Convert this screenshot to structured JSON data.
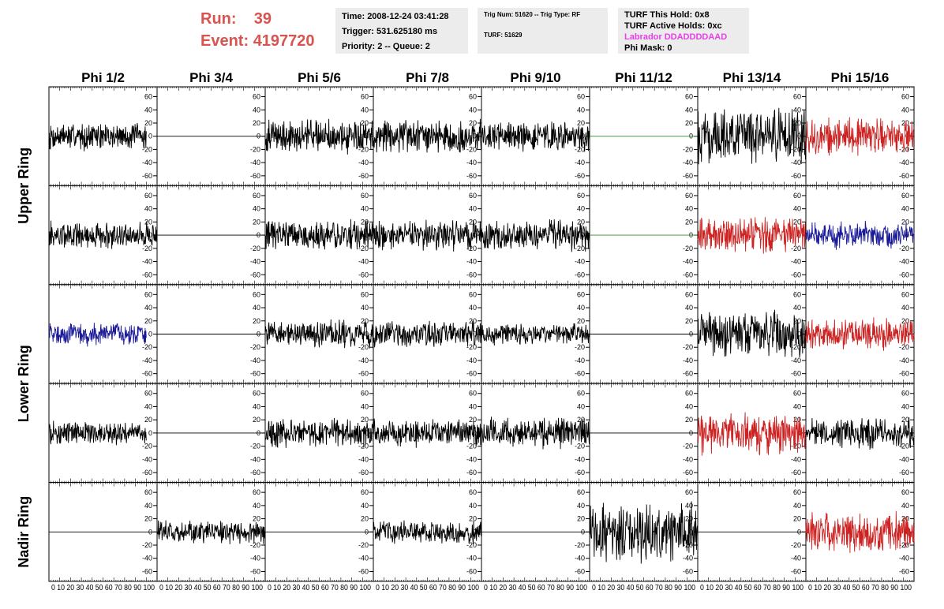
{
  "header": {
    "run_label": "Run:",
    "run_value": "39",
    "event_label": "Event:",
    "event_value": "4197720"
  },
  "info_box_1": {
    "time": "Time: 2008-12-24 03:41:28",
    "trigger": "Trigger: 531.625180 ms",
    "priority": "Priority: 2 -- Queue: 2"
  },
  "info_box_2": {
    "trig": "Trig Num: 51620 -- Trig Type: RF",
    "turf": "TURF: 51629"
  },
  "info_box_3": {
    "hold": "TURF This Hold: 0x8",
    "active": "TURF Active Holds: 0xc",
    "labrador": "Labrador DDADDDDAAD",
    "phimask": "Phi Mask: 0"
  },
  "colors": {
    "black": "#000000",
    "red": "#cc2222",
    "blue": "#1a1a99",
    "green": "#2e8b2e",
    "run_text": "#d9534f",
    "labrador": "#e83ee8"
  },
  "chart_data": {
    "type": "line",
    "columns": [
      "Phi 1/2",
      "Phi 3/4",
      "Phi 5/6",
      "Phi 7/8",
      "Phi 9/10",
      "Phi 11/12",
      "Phi 13/14",
      "Phi 15/16"
    ],
    "rows": [
      "Upper Ring",
      "Upper Ring",
      "Lower Ring",
      "Lower Ring",
      "Nadir Ring"
    ],
    "ring_labels": [
      "Upper Ring",
      "Lower Ring",
      "Nadir Ring"
    ],
    "xlim": [
      0,
      100
    ],
    "ylim": [
      -75,
      75
    ],
    "y_ticks": [
      -60,
      -40,
      -20,
      0,
      20,
      40,
      60
    ],
    "x_tick_text": "0 10 20 30 40 50 60 70 80 90 100",
    "traces": [
      [
        {
          "color": "black",
          "amp": 18,
          "x0": 0,
          "x1": 90
        },
        {
          "color": "black",
          "amp": 0,
          "x0": 0,
          "x1": 100
        },
        {
          "color": "black",
          "amp": 22,
          "x0": 0,
          "x1": 100
        },
        {
          "color": "black",
          "amp": 22,
          "x0": 0,
          "x1": 100
        },
        {
          "color": "black",
          "amp": 20,
          "x0": 0,
          "x1": 100
        },
        {
          "color": "green",
          "amp": 0,
          "x0": 0,
          "x1": 100
        },
        {
          "color": "black",
          "amp": 35,
          "x0": 0,
          "x1": 100
        },
        {
          "color": "red",
          "amp": 24,
          "x0": 0,
          "x1": 100
        }
      ],
      [
        {
          "color": "black",
          "amp": 18,
          "x0": 0,
          "x1": 100
        },
        {
          "color": "black",
          "amp": 0,
          "x0": 0,
          "x1": 100
        },
        {
          "color": "black",
          "amp": 20,
          "x0": 0,
          "x1": 100
        },
        {
          "color": "black",
          "amp": 20,
          "x0": 0,
          "x1": 100
        },
        {
          "color": "black",
          "amp": 20,
          "x0": 0,
          "x1": 100
        },
        {
          "color": "green",
          "amp": 0,
          "x0": 0,
          "x1": 100
        },
        {
          "color": "red",
          "amp": 24,
          "x0": 0,
          "x1": 100
        },
        {
          "color": "blue",
          "amp": 18,
          "x0": 0,
          "x1": 100
        }
      ],
      [
        {
          "color": "blue",
          "amp": 15,
          "x0": 0,
          "x1": 90
        },
        {
          "color": "black",
          "amp": 0,
          "x0": 0,
          "x1": 100
        },
        {
          "color": "black",
          "amp": 18,
          "x0": 0,
          "x1": 100
        },
        {
          "color": "black",
          "amp": 18,
          "x0": 0,
          "x1": 100
        },
        {
          "color": "black",
          "amp": 14,
          "x0": 0,
          "x1": 100
        },
        {
          "color": "black",
          "amp": 0,
          "x0": 0,
          "x1": 100
        },
        {
          "color": "black",
          "amp": 30,
          "x0": 0,
          "x1": 100
        },
        {
          "color": "red",
          "amp": 20,
          "x0": 0,
          "x1": 100
        }
      ],
      [
        {
          "color": "black",
          "amp": 15,
          "x0": 0,
          "x1": 90
        },
        {
          "color": "black",
          "amp": 0,
          "x0": 0,
          "x1": 100
        },
        {
          "color": "black",
          "amp": 20,
          "x0": 0,
          "x1": 100
        },
        {
          "color": "black",
          "amp": 18,
          "x0": 0,
          "x1": 100
        },
        {
          "color": "black",
          "amp": 20,
          "x0": 0,
          "x1": 100
        },
        {
          "color": "black",
          "amp": 0,
          "x0": 0,
          "x1": 100
        },
        {
          "color": "red",
          "amp": 28,
          "x0": 0,
          "x1": 100
        },
        {
          "color": "black",
          "amp": 20,
          "x0": 0,
          "x1": 100
        }
      ],
      [
        {
          "color": "black",
          "amp": 0,
          "x0": 0,
          "x1": 100
        },
        {
          "color": "black",
          "amp": 15,
          "x0": 0,
          "x1": 100
        },
        {
          "color": "black",
          "amp": 0,
          "x0": 0,
          "x1": 100
        },
        {
          "color": "black",
          "amp": 15,
          "x0": 0,
          "x1": 100
        },
        {
          "color": "black",
          "amp": 0,
          "x0": 0,
          "x1": 100
        },
        {
          "color": "black",
          "amp": 38,
          "x0": 0,
          "x1": 100
        },
        {
          "color": "black",
          "amp": 0,
          "x0": 0,
          "x1": 100
        },
        {
          "color": "red",
          "amp": 26,
          "x0": 0,
          "x1": 100
        }
      ]
    ]
  }
}
